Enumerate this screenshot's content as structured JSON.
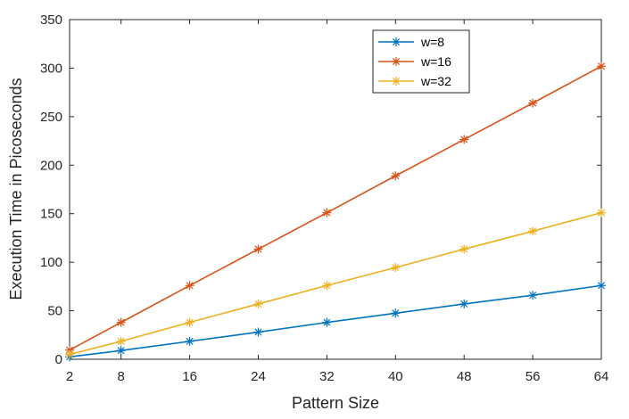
{
  "chart_data": {
    "type": "line",
    "title": "",
    "xlabel": "Pattern Size",
    "ylabel": "Execution Time in Picoseconds",
    "x": [
      2,
      8,
      16,
      24,
      32,
      40,
      48,
      56,
      64
    ],
    "xticks": [
      2,
      8,
      16,
      24,
      32,
      40,
      48,
      56,
      64
    ],
    "xlim": [
      2,
      64
    ],
    "ylim": [
      0,
      350
    ],
    "yticks": [
      0,
      50,
      100,
      150,
      200,
      250,
      300,
      350
    ],
    "grid": false,
    "legend_position": "top-right",
    "marker": "asterisk",
    "series": [
      {
        "name": "w=8",
        "color": "#0072BD",
        "values": [
          2.5,
          9,
          18.5,
          28,
          38,
          47.5,
          57,
          66,
          76
        ]
      },
      {
        "name": "w=16",
        "color": "#D95319",
        "values": [
          9.5,
          38,
          76,
          113.5,
          151,
          189,
          226.5,
          264,
          302
        ]
      },
      {
        "name": "w=32",
        "color": "#EDB120",
        "values": [
          5,
          18.5,
          38,
          57,
          76,
          94.5,
          113.5,
          132,
          151
        ]
      }
    ]
  }
}
